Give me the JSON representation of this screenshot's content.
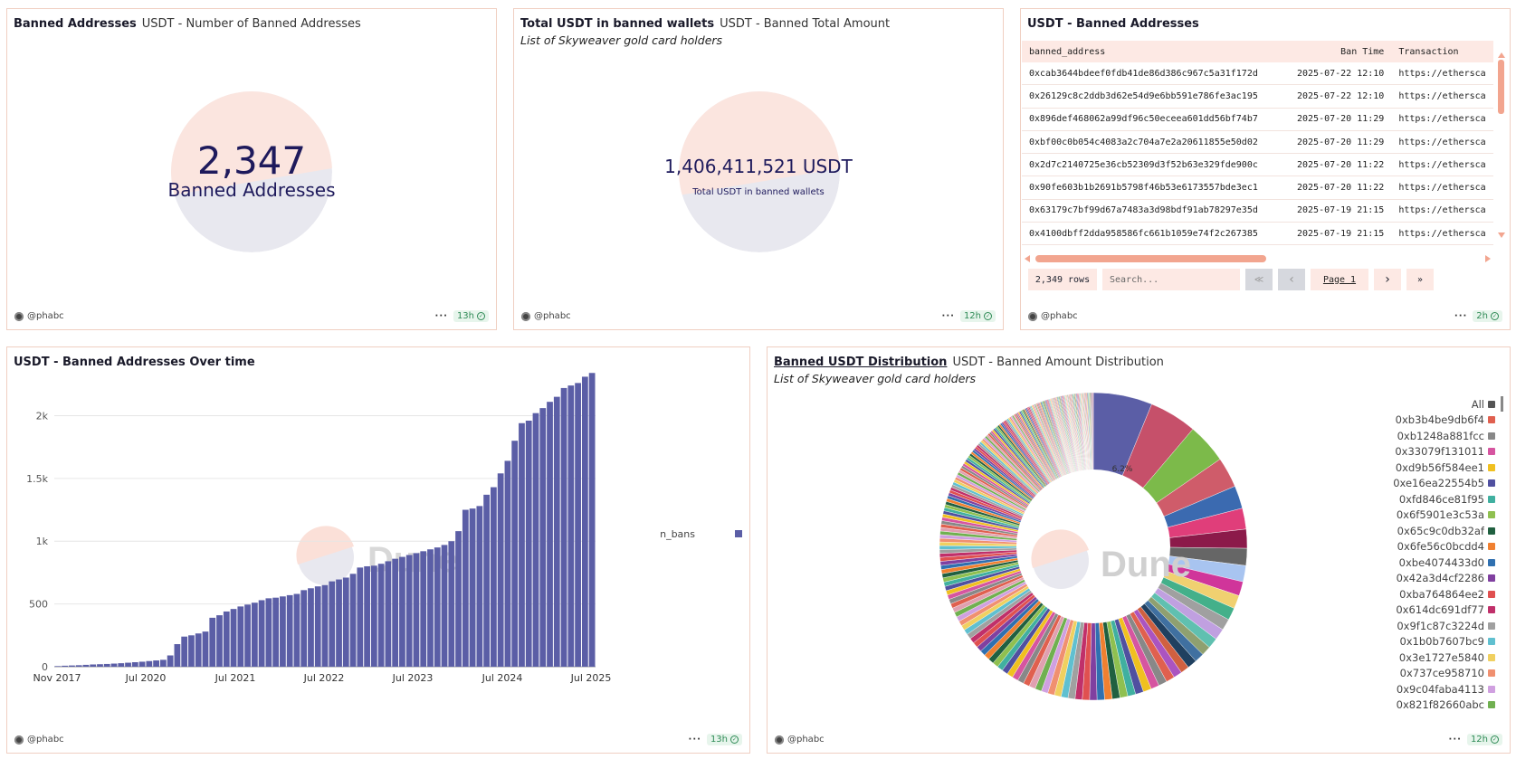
{
  "user": "@phabc",
  "panel1": {
    "title": "Banned Addresses",
    "subtitle": "USDT - Number of Banned Addresses",
    "counter": "2,347",
    "counter_label": "Banned Addresses",
    "age": "13h"
  },
  "panel2": {
    "title": "Total USDT in banned wallets",
    "subtitle": "USDT - Banned Total Amount",
    "description": "List of Skyweaver gold card holders",
    "counter": "1,406,411,521 USDT",
    "counter_label": "Total USDT in banned wallets",
    "age": "12h"
  },
  "panel3": {
    "title": "USDT - Banned Addresses",
    "columns": [
      "banned_address",
      "Ban Time",
      "Transaction"
    ],
    "rows": [
      [
        "0xcab3644bdeef0fdb41de86d386c967c5a31f172d",
        "2025-07-22 12:10",
        "https://ethersca"
      ],
      [
        "0x26129c8c2ddb3d62e54d9e6bb591e786fe3ac195",
        "2025-07-22 12:10",
        "https://ethersca"
      ],
      [
        "0x896def468062a99df96c50eceea601dd56bf74b7",
        "2025-07-20 11:29",
        "https://ethersca"
      ],
      [
        "0xbf00c0b054c4083a2c704a7e2a20611855e50d02",
        "2025-07-20 11:29",
        "https://ethersca"
      ],
      [
        "0x2d7c2140725e36cb52309d3f52b63e329fde900c",
        "2025-07-20 11:22",
        "https://ethersca"
      ],
      [
        "0x90fe603b1b2691b5798f46b53e6173557bde3ec1",
        "2025-07-20 11:22",
        "https://ethersca"
      ],
      [
        "0x63179c7bf99d67a7483a3d98bdf91ab78297e35d",
        "2025-07-19 21:15",
        "https://ethersca"
      ],
      [
        "0x4100dbff2dda958586fc661b1059e74f2c267385",
        "2025-07-19 21:15",
        "https://ethersca"
      ]
    ],
    "row_count": "2,349 rows",
    "search_placeholder": "Search...",
    "page_label": "Page 1",
    "first_icon": "≪",
    "prev_icon": "‹",
    "next_icon": "›",
    "last_icon": "»",
    "age": "2h"
  },
  "panel4": {
    "title": "USDT - Banned Addresses Over time",
    "age": "13h",
    "watermark": "Dune"
  },
  "panel5": {
    "title": "Banned USDT Distribution",
    "subtitle": "USDT - Banned Amount Distribution",
    "description": "List of Skyweaver gold card holders",
    "slice_label": "6.2%",
    "watermark": "Dune",
    "legend": [
      {
        "label": "All",
        "color": "#555555"
      },
      {
        "label": "0xb3b4be9db6f4",
        "color": "#e0604f"
      },
      {
        "label": "0xb1248a881fcc",
        "color": "#888888"
      },
      {
        "label": "0x33079f131011",
        "color": "#d655a0"
      },
      {
        "label": "0xd9b56f584ee1",
        "color": "#f0c020"
      },
      {
        "label": "0xe16ea22554b5",
        "color": "#5050a0"
      },
      {
        "label": "0xfd846ce81f95",
        "color": "#40b0a0"
      },
      {
        "label": "0x6f5901e3c53a",
        "color": "#8fc050"
      },
      {
        "label": "0x65c9c0db32af",
        "color": "#206040"
      },
      {
        "label": "0x6fe56c0bcdd4",
        "color": "#f08030"
      },
      {
        "label": "0xbe4074433d0",
        "color": "#3070b0"
      },
      {
        "label": "0x42a3d4cf2286",
        "color": "#8040a0"
      },
      {
        "label": "0xba764864ee2",
        "color": "#e05050"
      },
      {
        "label": "0x614dc691df77",
        "color": "#c0306a"
      },
      {
        "label": "0x9f1c87c3224d",
        "color": "#a0a0a0"
      },
      {
        "label": "0x1b0b7607bc9",
        "color": "#60c0d0"
      },
      {
        "label": "0x3e1727e5840",
        "color": "#f0d060"
      },
      {
        "label": "0x737ce958710",
        "color": "#f09070"
      },
      {
        "label": "0x9c04faba4113",
        "color": "#d0a0e0"
      },
      {
        "label": "0x821f82660abc",
        "color": "#70b050"
      }
    ],
    "age": "12h"
  },
  "chart_data": {
    "type": "bar",
    "series": [
      {
        "name": "n_bans",
        "color": "#5b5ea6"
      }
    ],
    "x_tick_labels": [
      "Nov 2017",
      "Jul 2020",
      "Jul 2021",
      "Jul 2022",
      "Jul 2023",
      "Jul 2024",
      "Jul 2025"
    ],
    "y_tick_labels": [
      "0",
      "500",
      "1k",
      "1.5k",
      "2k"
    ],
    "ylim": [
      0,
      2450
    ],
    "values": [
      5,
      8,
      10,
      12,
      15,
      18,
      20,
      22,
      25,
      28,
      32,
      36,
      40,
      45,
      50,
      55,
      90,
      180,
      240,
      250,
      265,
      280,
      390,
      410,
      440,
      460,
      480,
      495,
      510,
      530,
      545,
      550,
      560,
      570,
      580,
      610,
      625,
      640,
      650,
      680,
      695,
      710,
      740,
      790,
      800,
      805,
      820,
      840,
      860,
      875,
      890,
      905,
      920,
      935,
      950,
      970,
      1000,
      1080,
      1250,
      1260,
      1280,
      1370,
      1430,
      1540,
      1640,
      1800,
      1940,
      1960,
      2020,
      2060,
      2110,
      2150,
      2220,
      2240,
      2260,
      2310,
      2340
    ],
    "grid": true,
    "legend": "right"
  }
}
